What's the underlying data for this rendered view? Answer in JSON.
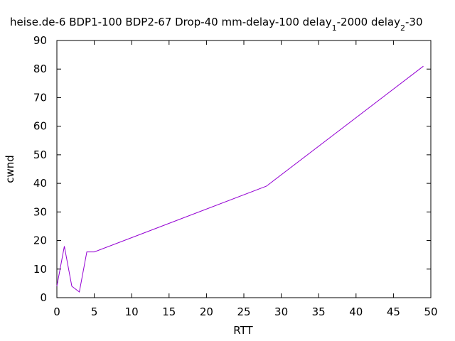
{
  "chart_data": {
    "type": "line",
    "title_parts": [
      {
        "text": "heise.de-6 BDP1-100 BDP2-67 Drop-40 mm-delay-100 delay",
        "sub": false
      },
      {
        "text": "1",
        "sub": true
      },
      {
        "text": "-2000 delay",
        "sub": false
      },
      {
        "text": "2",
        "sub": true
      },
      {
        "text": "-30",
        "sub": false
      }
    ],
    "xlabel": "RTT",
    "ylabel": "cwnd",
    "xlim": [
      0,
      50
    ],
    "ylim": [
      0,
      90
    ],
    "xticks": [
      0,
      5,
      10,
      15,
      20,
      25,
      30,
      35,
      40,
      45,
      50
    ],
    "yticks": [
      0,
      10,
      20,
      30,
      40,
      50,
      60,
      70,
      80,
      90
    ],
    "grid": false,
    "legend": "none",
    "series": [
      {
        "color": "#9400d3",
        "x": [
          0,
          1,
          2,
          3,
          4,
          5,
          12,
          28,
          49
        ],
        "y": [
          4,
          18,
          4,
          2,
          16,
          16,
          23,
          39,
          81
        ]
      }
    ]
  }
}
